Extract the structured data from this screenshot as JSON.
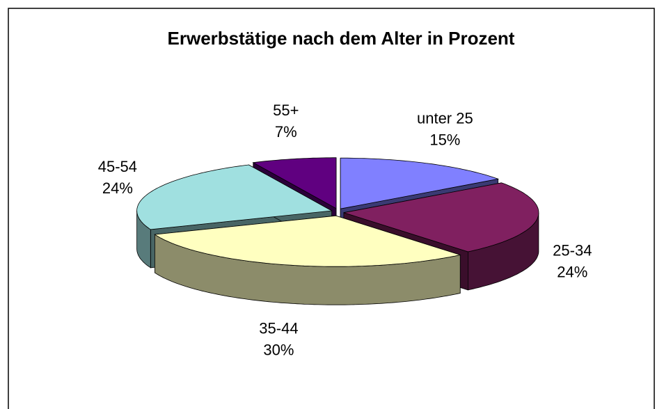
{
  "chart_data": {
    "type": "pie",
    "title": "Erwerbstätige nach dem Alter in Prozent",
    "categories": [
      "unter 25",
      "25-34",
      "35-44",
      "45-54",
      "55+"
    ],
    "values": [
      15,
      24,
      30,
      24,
      7
    ],
    "value_labels": [
      "15%",
      "24%",
      "30%",
      "24%",
      "7%"
    ],
    "colors": [
      "#8080ff",
      "#802060",
      "#ffffc0",
      "#a0e0e0",
      "#600080"
    ]
  }
}
